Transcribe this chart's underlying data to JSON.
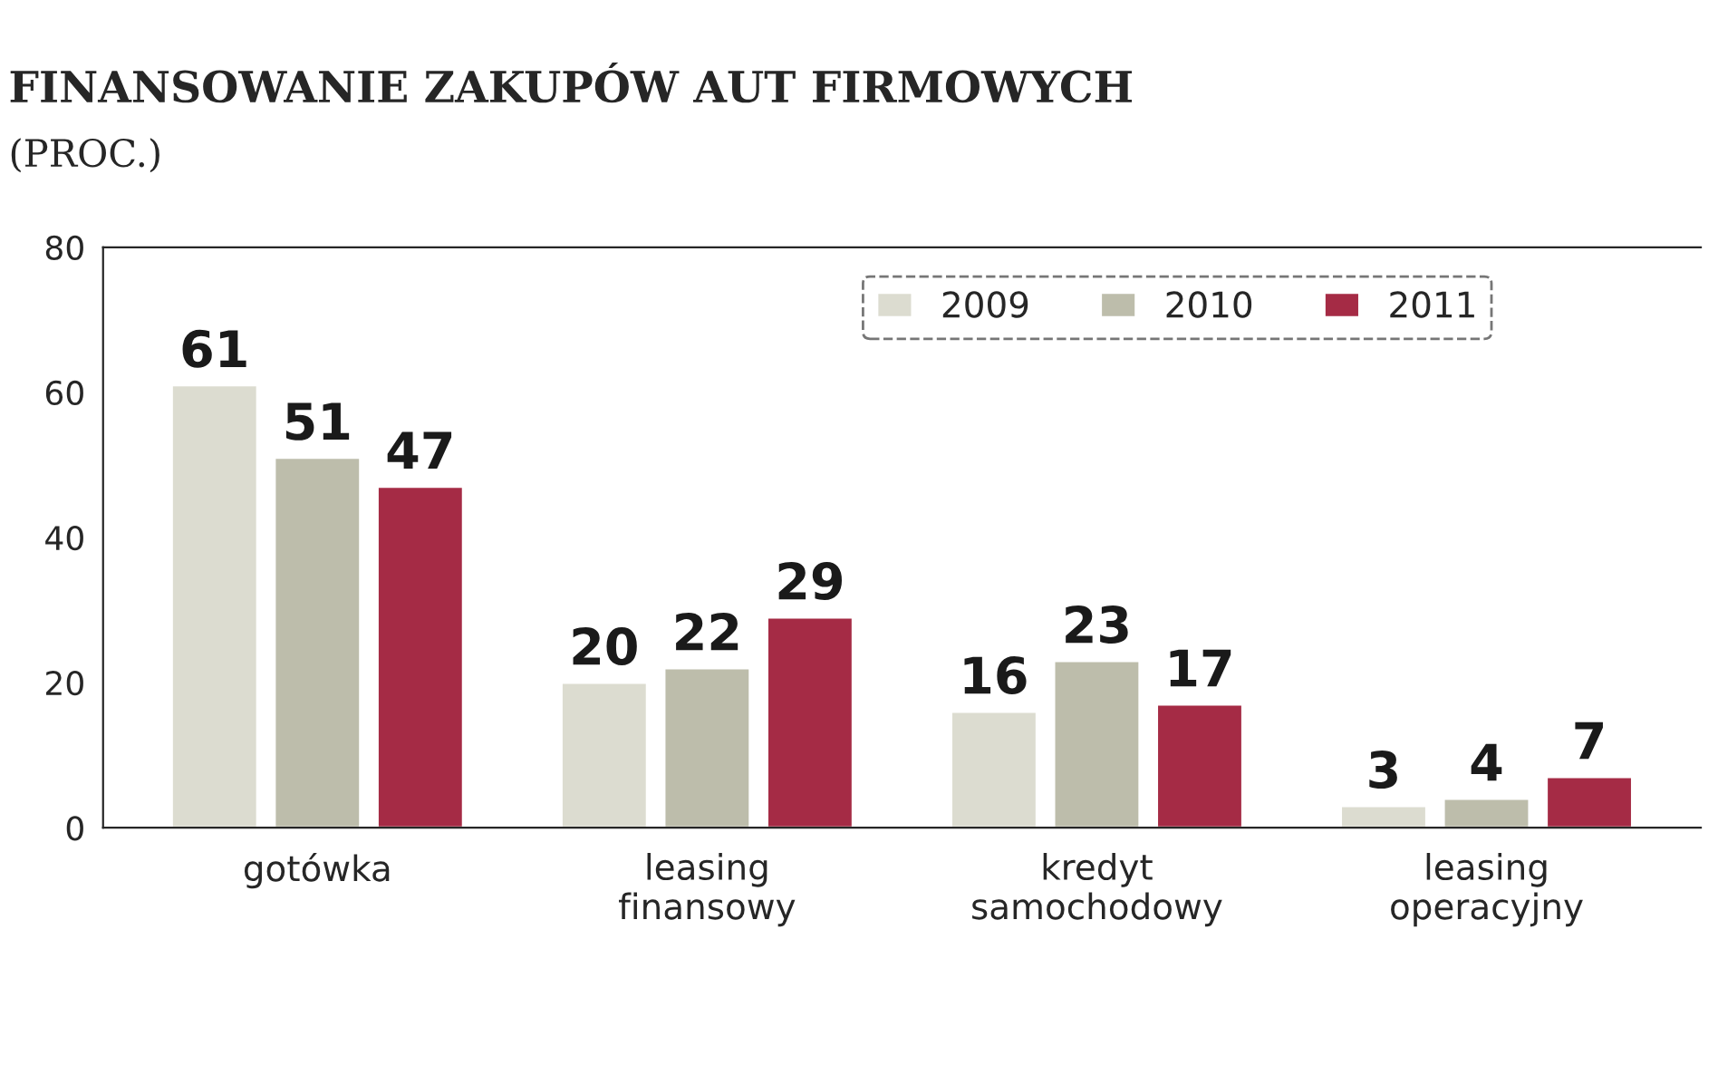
{
  "chart_data": {
    "type": "bar",
    "title": "FINANSOWANIE ZAKUPÓW AUT FIRMOWYCH",
    "subtitle": "(PROC.)",
    "categories": [
      "gotówka",
      "leasing\nfinansowy",
      "kredyt\nsamochodowy",
      "leasing\noperacyjny"
    ],
    "series": [
      {
        "name": "2009",
        "color": "#dcdcd0",
        "values": [
          61,
          20,
          16,
          3
        ]
      },
      {
        "name": "2010",
        "color": "#bdbdab",
        "values": [
          51,
          22,
          23,
          4
        ]
      },
      {
        "name": "2011",
        "color": "#a52b45",
        "values": [
          47,
          29,
          17,
          7
        ]
      }
    ],
    "ylim": [
      0,
      80
    ],
    "yticks": [
      0,
      20,
      40,
      60,
      80
    ],
    "data_labels": true,
    "legend": "top right",
    "grid": false
  }
}
